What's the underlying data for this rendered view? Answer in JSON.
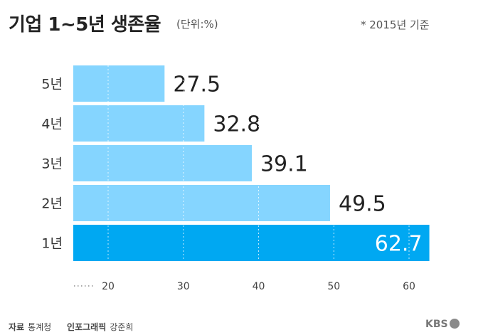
{
  "header": {
    "title": "기업 1~5년 생존율",
    "unit": "(단위:%)",
    "note": "* 2015년 기준"
  },
  "footer": {
    "source_label": "자료",
    "source": "통계청",
    "graphic_label": "인포그래픽",
    "graphic_author": "강준희",
    "logo": "KBS"
  },
  "colors": {
    "bar": "#85d5ff",
    "bar_highlight": "#00a8f2"
  },
  "chart_data": {
    "type": "bar",
    "orientation": "horizontal",
    "title": "기업 1~5년 생존율",
    "unit": "%",
    "categories": [
      "5년",
      "4년",
      "3년",
      "2년",
      "1년"
    ],
    "values": [
      27.5,
      32.8,
      39.1,
      49.5,
      62.7
    ],
    "highlight": "1년",
    "x_ticks": [
      20,
      30,
      40,
      50,
      60
    ],
    "xlim": [
      15,
      64
    ],
    "grid": true,
    "axis_break": true
  }
}
